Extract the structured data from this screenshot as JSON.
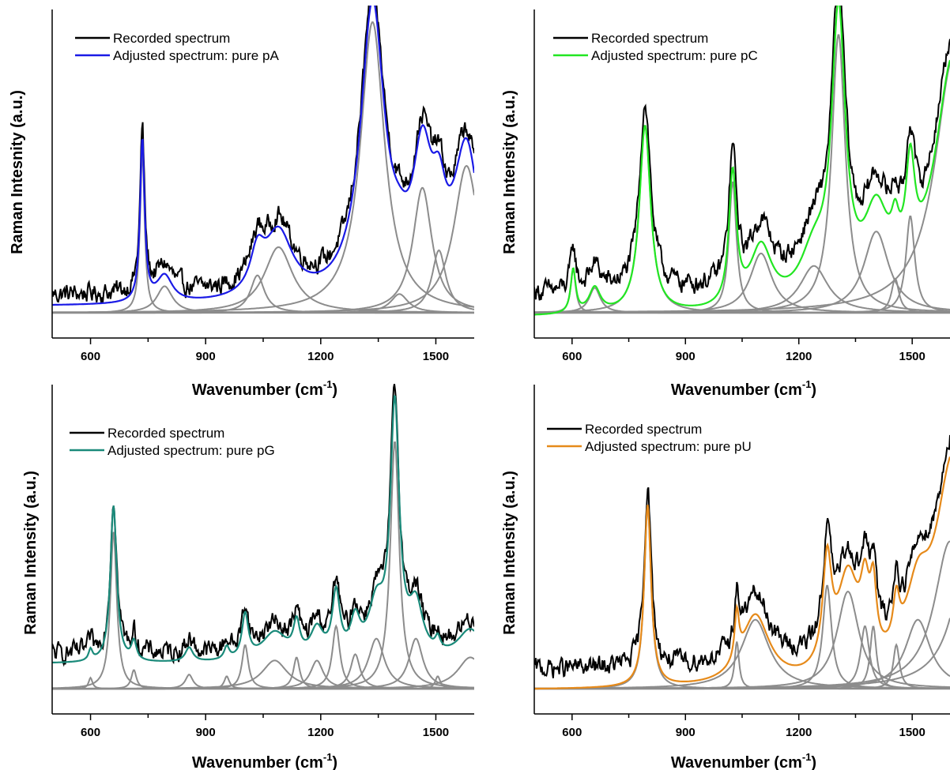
{
  "chart_data": [
    {
      "type": "line",
      "panel": "top-left",
      "ylabel": "Raman Intesnity (a.u.)",
      "xlabel": "Wavenumber (cm",
      "xlabel_sup": "-1",
      "xlabel_close": ")",
      "xlim": [
        500,
        1600
      ],
      "ylim": [
        0,
        1.0
      ],
      "xticks": [
        600,
        900,
        1200,
        1500
      ],
      "legend": {
        "placement": "top-left",
        "entries": [
          "Recorded spectrum",
          "Adjusted spectrum: pure pA"
        ]
      },
      "grid": false,
      "series": [
        {
          "name": "Recorded spectrum",
          "color": "#000000"
        },
        {
          "name": "Adjusted spectrum: pure pA",
          "color": "#1a1ae6"
        }
      ],
      "baseline": 0.05,
      "recorded_baseline": 0.085,
      "components": [
        {
          "x0": 735,
          "h": 0.52,
          "w": 7
        },
        {
          "x0": 793,
          "h": 0.085,
          "w": 25
        },
        {
          "x0": 1035,
          "h": 0.12,
          "w": 22
        },
        {
          "x0": 1090,
          "h": 0.21,
          "w": 45
        },
        {
          "x0": 1335,
          "h": 0.93,
          "w": 38
        },
        {
          "x0": 1405,
          "h": 0.06,
          "w": 28
        },
        {
          "x0": 1465,
          "h": 0.4,
          "w": 30
        },
        {
          "x0": 1508,
          "h": 0.2,
          "w": 22
        },
        {
          "x0": 1580,
          "h": 0.47,
          "w": 40
        }
      ]
    },
    {
      "type": "line",
      "panel": "top-right",
      "ylabel": "Raman Intensity (a.u.)",
      "xlabel": "Wavenumber (cm",
      "xlabel_sup": "-1",
      "xlabel_close": ")",
      "xlim": [
        500,
        1600
      ],
      "ylim": [
        0,
        1.0
      ],
      "xticks": [
        600,
        900,
        1200,
        1500
      ],
      "legend": {
        "placement": "top-left",
        "entries": [
          "Recorded spectrum",
          "Adjusted spectrum: pure pC"
        ]
      },
      "grid": false,
      "series": [
        {
          "name": "Recorded spectrum",
          "color": "#000000"
        },
        {
          "name": "Adjusted spectrum: pure pC",
          "color": "#22e622"
        }
      ],
      "baseline": 0.015,
      "recorded_baseline": 0.09,
      "components": [
        {
          "x0": 603,
          "h": 0.14,
          "w": 8
        },
        {
          "x0": 660,
          "h": 0.08,
          "w": 18
        },
        {
          "x0": 793,
          "h": 0.6,
          "w": 18
        },
        {
          "x0": 1025,
          "h": 0.42,
          "w": 12
        },
        {
          "x0": 1100,
          "h": 0.19,
          "w": 35
        },
        {
          "x0": 1240,
          "h": 0.15,
          "w": 45
        },
        {
          "x0": 1305,
          "h": 0.89,
          "w": 22
        },
        {
          "x0": 1405,
          "h": 0.26,
          "w": 40
        },
        {
          "x0": 1455,
          "h": 0.11,
          "w": 12
        },
        {
          "x0": 1495,
          "h": 0.31,
          "w": 14
        },
        {
          "x0": 1610,
          "h": 0.82,
          "w": 60
        }
      ]
    },
    {
      "type": "line",
      "panel": "bottom-left",
      "ylabel": "Raman Intensity (a.u.)",
      "xlabel": "Wavenumber (cm",
      "xlabel_sup": "-1",
      "xlabel_close": ")",
      "xlim": [
        500,
        1600
      ],
      "ylim": [
        0,
        1.0
      ],
      "xticks": [
        600,
        900,
        1200,
        1500
      ],
      "legend": {
        "placement": "top-left",
        "entries": [
          "Recorded spectrum",
          "Adjusted spectrum: pure pG"
        ]
      },
      "grid": false,
      "series": [
        {
          "name": "Recorded spectrum",
          "color": "#000000"
        },
        {
          "name": "Adjusted spectrum: pure pG",
          "color": "#1a8a7a"
        }
      ],
      "baseline": 0.11,
      "recorded_baseline": 0.14,
      "components": [
        {
          "x0": 600,
          "h": 0.035,
          "w": 6
        },
        {
          "x0": 660,
          "h": 0.5,
          "w": 10
        },
        {
          "x0": 713,
          "h": 0.06,
          "w": 8
        },
        {
          "x0": 857,
          "h": 0.045,
          "w": 12
        },
        {
          "x0": 955,
          "h": 0.04,
          "w": 8
        },
        {
          "x0": 1003,
          "h": 0.14,
          "w": 10
        },
        {
          "x0": 1080,
          "h": 0.09,
          "w": 40
        },
        {
          "x0": 1137,
          "h": 0.1,
          "w": 10
        },
        {
          "x0": 1190,
          "h": 0.09,
          "w": 20
        },
        {
          "x0": 1240,
          "h": 0.2,
          "w": 12
        },
        {
          "x0": 1290,
          "h": 0.11,
          "w": 15
        },
        {
          "x0": 1345,
          "h": 0.16,
          "w": 25
        },
        {
          "x0": 1393,
          "h": 0.79,
          "w": 14
        },
        {
          "x0": 1448,
          "h": 0.16,
          "w": 22
        },
        {
          "x0": 1505,
          "h": 0.04,
          "w": 8
        },
        {
          "x0": 1590,
          "h": 0.1,
          "w": 40
        }
      ]
    },
    {
      "type": "line",
      "panel": "bottom-right",
      "ylabel": "Raman Intensity (a.u.)",
      "xlabel": "Wavenumber (cm",
      "xlabel_sup": "-1",
      "xlabel_close": ")",
      "xlim": [
        500,
        1600
      ],
      "ylim": [
        0,
        1.0
      ],
      "xticks": [
        600,
        900,
        1200,
        1500
      ],
      "legend": {
        "placement": "top-left",
        "entries": [
          "Recorded spectrum",
          "Adjusted spectrum: pure pU"
        ]
      },
      "grid": false,
      "series": [
        {
          "name": "Recorded spectrum",
          "color": "#000000"
        },
        {
          "name": "Adjusted spectrum: pure pU",
          "color": "#e68a1a"
        }
      ],
      "baseline": 0.025,
      "recorded_baseline": 0.09,
      "components": [
        {
          "x0": 800,
          "h": 0.58,
          "w": 11
        },
        {
          "x0": 1036,
          "h": 0.15,
          "w": 7
        },
        {
          "x0": 1085,
          "h": 0.22,
          "w": 45
        },
        {
          "x0": 1275,
          "h": 0.33,
          "w": 14
        },
        {
          "x0": 1330,
          "h": 0.31,
          "w": 35
        },
        {
          "x0": 1375,
          "h": 0.2,
          "w": 14
        },
        {
          "x0": 1397,
          "h": 0.2,
          "w": 10
        },
        {
          "x0": 1458,
          "h": 0.14,
          "w": 10
        },
        {
          "x0": 1515,
          "h": 0.22,
          "w": 40
        },
        {
          "x0": 1600,
          "h": 0.47,
          "w": 50
        },
        {
          "x0": 1660,
          "h": 0.55,
          "w": 50
        }
      ]
    }
  ]
}
